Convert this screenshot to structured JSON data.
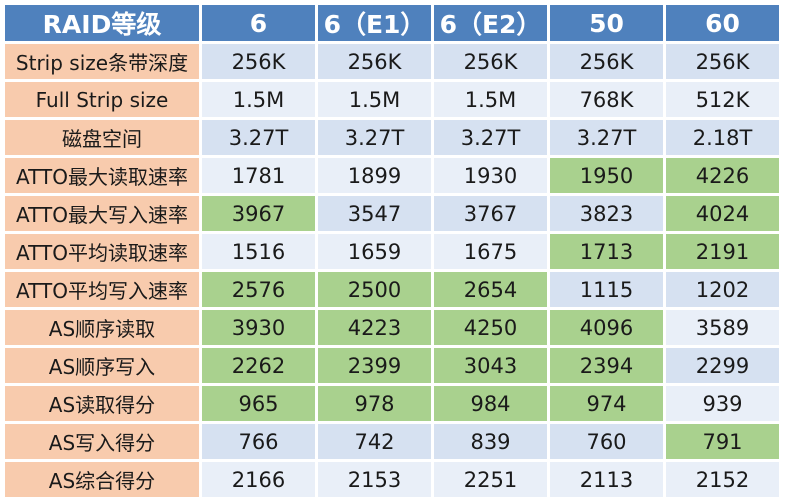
{
  "header": {
    "label": "RAID等级",
    "levels": [
      "6",
      "6（E1）",
      "6（E2）",
      "50",
      "60"
    ]
  },
  "rows": [
    {
      "label": "Strip size条带深度",
      "values": [
        "256K",
        "256K",
        "256K",
        "256K",
        "256K"
      ],
      "highlight": []
    },
    {
      "label": "Full Strip size",
      "values": [
        "1.5M",
        "1.5M",
        "1.5M",
        "768K",
        "512K"
      ],
      "highlight": []
    },
    {
      "label": "磁盘空间",
      "values": [
        "3.27T",
        "3.27T",
        "3.27T",
        "3.27T",
        "2.18T"
      ],
      "highlight": []
    },
    {
      "label": "ATTO最大读取速率",
      "values": [
        "1781",
        "1899",
        "1930",
        "1950",
        "4226"
      ],
      "highlight": [
        3,
        4
      ]
    },
    {
      "label": "ATTO最大写入速率",
      "values": [
        "3967",
        "3547",
        "3767",
        "3823",
        "4024"
      ],
      "highlight": [
        0,
        4
      ]
    },
    {
      "label": "ATTO平均读取速率",
      "values": [
        "1516",
        "1659",
        "1675",
        "1713",
        "2191"
      ],
      "highlight": [
        3,
        4
      ]
    },
    {
      "label": "ATTO平均写入速率",
      "values": [
        "2576",
        "2500",
        "2654",
        "1115",
        "1202"
      ],
      "highlight": [
        0,
        1,
        2
      ]
    },
    {
      "label": "AS顺序读取",
      "values": [
        "3930",
        "4223",
        "4250",
        "4096",
        "3589"
      ],
      "highlight": [
        0,
        1,
        2,
        3
      ]
    },
    {
      "label": "AS顺序写入",
      "values": [
        "2262",
        "2399",
        "3043",
        "2394",
        "2299"
      ],
      "highlight": [
        0,
        1,
        2,
        3
      ]
    },
    {
      "label": "AS读取得分",
      "values": [
        "965",
        "978",
        "984",
        "974",
        "939"
      ],
      "highlight": [
        0,
        1,
        2,
        3
      ]
    },
    {
      "label": "AS写入得分",
      "values": [
        "766",
        "742",
        "839",
        "760",
        "791"
      ],
      "highlight": [
        4
      ]
    },
    {
      "label": "AS综合得分",
      "values": [
        "2166",
        "2153",
        "2251",
        "2113",
        "2152"
      ],
      "highlight": []
    }
  ],
  "colors": {
    "header": "#4f81bd",
    "label_cell": "#f8cbad",
    "row_odd": "#d6e1f1",
    "row_even": "#e9eff8",
    "highlight": "#a9d18e"
  }
}
